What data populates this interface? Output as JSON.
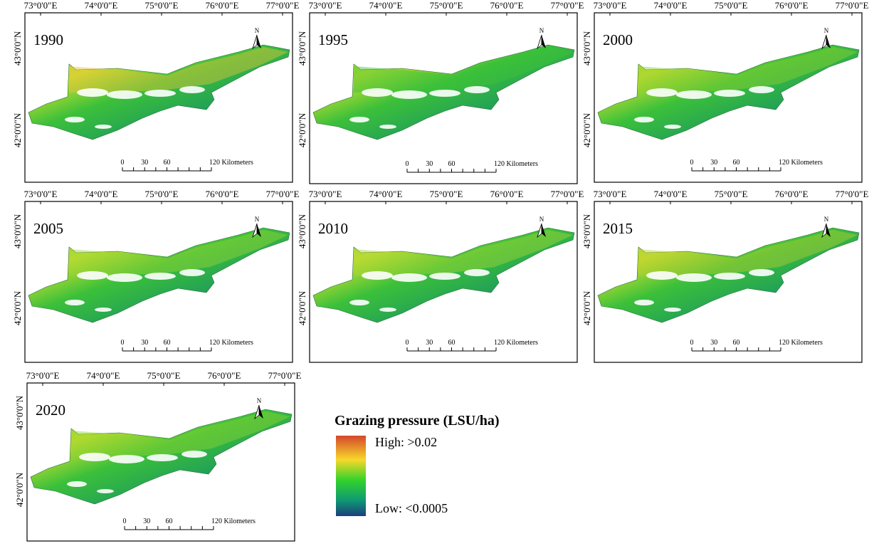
{
  "panels": [
    {
      "year": "1990"
    },
    {
      "year": "1995"
    },
    {
      "year": "2000"
    },
    {
      "year": "2005"
    },
    {
      "year": "2010"
    },
    {
      "year": "2015"
    },
    {
      "year": "2020"
    }
  ],
  "longitude_labels": [
    "73°0'0\"E",
    "74°0'0\"E",
    "75°0'0\"E",
    "76°0'0\"E",
    "77°0'0\"E"
  ],
  "latitude_labels": [
    "43°0'0\"N",
    "42°0'0\"N"
  ],
  "scale_labels": [
    "0",
    "30",
    "60",
    "120 Kilometers"
  ],
  "north": "N",
  "legend": {
    "title": "Grazing pressure (LSU/ha)",
    "high": "High: >0.02",
    "low": "Low: <0.0005"
  }
}
